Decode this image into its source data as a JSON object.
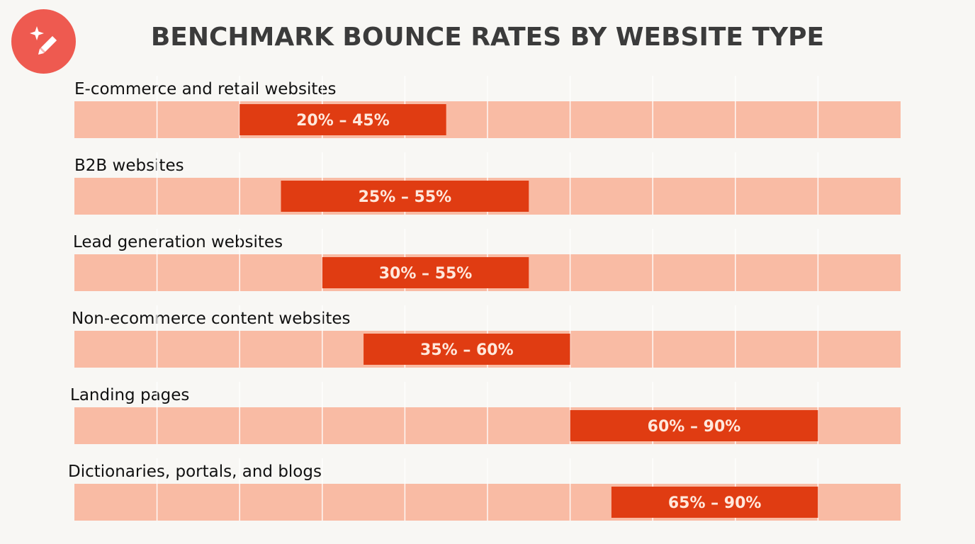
{
  "title": "BENCHMARK BOUNCE RATES BY WEBSITE TYPE",
  "logo": {
    "icon": "sparkle-pen-icon"
  },
  "colors": {
    "track": "#f9bba4",
    "bar": "#e03c12",
    "gridline": "#ffffff",
    "background": "#f8f7f4",
    "logo": "#ee5a50"
  },
  "chart_data": {
    "type": "bar",
    "orientation": "horizontal-range",
    "title": "BENCHMARK BOUNCE RATES BY WEBSITE TYPE",
    "xlim": [
      0,
      100
    ],
    "grid": true,
    "categories": [
      "E-commerce and retail websites",
      "B2B websites",
      "Lead generation websites",
      "Non-ecommerce content websites",
      "Landing pages",
      "Dictionaries, portals, and blogs"
    ],
    "ranges": [
      {
        "low": 20,
        "high": 45,
        "label": "20% – 45%"
      },
      {
        "low": 25,
        "high": 55,
        "label": "25% – 55%"
      },
      {
        "low": 30,
        "high": 55,
        "label": "30% – 55%"
      },
      {
        "low": 35,
        "high": 60,
        "label": "35% – 60%"
      },
      {
        "low": 60,
        "high": 90,
        "label": "60% – 90%"
      },
      {
        "low": 65,
        "high": 90,
        "label": "65% – 90%"
      }
    ]
  }
}
